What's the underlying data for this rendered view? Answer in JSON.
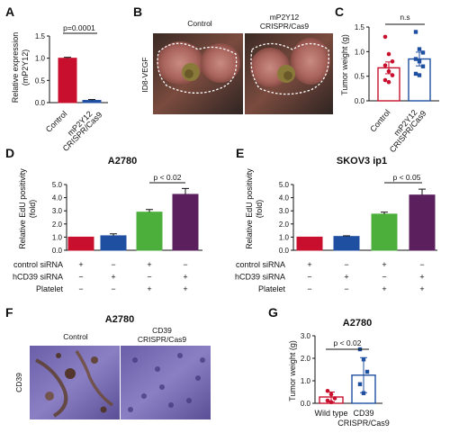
{
  "chart_data": [
    {
      "panel": "A",
      "type": "bar",
      "ylabel": "Relative expression (mP2Y12)",
      "categories": [
        "Control",
        "mP2Y12 CRISPR/Cas9"
      ],
      "values": [
        1.0,
        0.05
      ],
      "errors": [
        0.02,
        0.02
      ],
      "yticks": [
        "0.0",
        "0.5",
        "1.0",
        "1.5"
      ],
      "ylim": [
        0,
        1.5
      ],
      "colors": [
        "#c8102e",
        "#1f4fa0"
      ],
      "significance": "p=0.0001",
      "grid": false
    },
    {
      "panel": "B",
      "type": "image",
      "side_label": "ID8-VEGF",
      "labels": [
        "Control",
        "mP2Y12 CRISPR/Cas9"
      ]
    },
    {
      "panel": "C",
      "type": "scatter_bar",
      "ylabel": "Tumor weight (g)",
      "categories": [
        "Control",
        "mP2Y12 CRISPR/Cas9"
      ],
      "means": [
        0.67,
        0.85
      ],
      "errors": [
        0.12,
        0.14
      ],
      "points": [
        [
          1.3,
          0.95,
          0.8,
          0.72,
          0.6,
          0.52,
          0.42,
          0.38
        ],
        [
          1.4,
          1.05,
          0.98,
          0.85,
          0.8,
          0.7,
          0.55,
          0.52
        ]
      ],
      "yticks": [
        "0.0",
        "0.5",
        "1.0",
        "1.5"
      ],
      "ylim": [
        0,
        1.5
      ],
      "colors": [
        "#c8102e",
        "#1f4fa0"
      ],
      "significance": "n.s",
      "grid": false
    },
    {
      "panel": "D",
      "type": "bar",
      "title": "A2780",
      "ylabel": "Relative EdU positivity (fold)",
      "values": [
        1.0,
        1.1,
        2.9,
        4.25
      ],
      "errors": [
        0.0,
        0.15,
        0.2,
        0.45
      ],
      "yticks": [
        "0.0",
        "1.0",
        "2.0",
        "3.0",
        "4.0",
        "5.0"
      ],
      "ylim": [
        0,
        5
      ],
      "colors": [
        "#c8102e",
        "#1f4fa0",
        "#4caf3c",
        "#5b1f5e"
      ],
      "significance": "p < 0.02",
      "conditions": [
        {
          "label": "control siRNA",
          "marks": [
            "+",
            "−",
            "+",
            "−"
          ]
        },
        {
          "label": "hCD39 siRNA",
          "marks": [
            "−",
            "+",
            "−",
            "+"
          ]
        },
        {
          "label": "Platelet",
          "marks": [
            "−",
            "−",
            "+",
            "+"
          ]
        }
      ],
      "grid": false
    },
    {
      "panel": "E",
      "type": "bar",
      "title": "SKOV3 ip1",
      "ylabel": "Relative EdU positivity (fold)",
      "values": [
        1.0,
        1.05,
        2.75,
        4.2
      ],
      "errors": [
        0.0,
        0.05,
        0.15,
        0.45
      ],
      "yticks": [
        "0.0",
        "1.0",
        "2.0",
        "3.0",
        "4.0",
        "5.0"
      ],
      "ylim": [
        0,
        5
      ],
      "colors": [
        "#c8102e",
        "#1f4fa0",
        "#4caf3c",
        "#5b1f5e"
      ],
      "significance": "p < 0.05",
      "conditions": [
        {
          "label": "control siRNA",
          "marks": [
            "+",
            "−",
            "+",
            "−"
          ]
        },
        {
          "label": "hCD39 siRNA",
          "marks": [
            "−",
            "+",
            "−",
            "+"
          ]
        },
        {
          "label": "Platelet",
          "marks": [
            "−",
            "−",
            "+",
            "+"
          ]
        }
      ],
      "grid": false
    },
    {
      "panel": "F",
      "type": "image",
      "title": "A2780",
      "side_label": "CD39",
      "labels": [
        "Control",
        "CD39 CRISPR/Cas9"
      ]
    },
    {
      "panel": "G",
      "type": "scatter_bar",
      "title": "A2780",
      "ylabel": "Tumor weight (g)",
      "categories": [
        "Wild type",
        "CD39 CRISPR/Cas9"
      ],
      "means": [
        0.28,
        1.25
      ],
      "errors": [
        0.22,
        0.78
      ],
      "points": [
        [
          0.55,
          0.4,
          0.22,
          0.12,
          0.05
        ],
        [
          2.4,
          1.95,
          1.4,
          0.85,
          0.45
        ]
      ],
      "yticks": [
        "0.0",
        "1.0",
        "2.0",
        "3.0"
      ],
      "ylim": [
        0,
        3
      ],
      "colors": [
        "#c8102e",
        "#1f4fa0"
      ],
      "significance": "p < 0.02",
      "grid": false
    }
  ]
}
